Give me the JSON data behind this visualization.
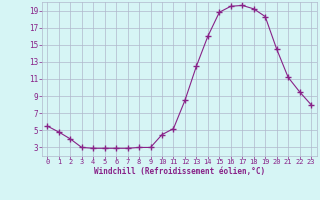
{
  "x": [
    0,
    1,
    2,
    3,
    4,
    5,
    6,
    7,
    8,
    9,
    10,
    11,
    12,
    13,
    14,
    15,
    16,
    17,
    18,
    19,
    20,
    21,
    22,
    23
  ],
  "y": [
    5.5,
    4.8,
    4.0,
    3.0,
    2.9,
    2.9,
    2.9,
    2.9,
    3.0,
    3.0,
    4.5,
    5.2,
    8.5,
    12.5,
    16.0,
    18.8,
    19.5,
    19.6,
    19.2,
    18.3,
    14.5,
    11.2,
    9.5,
    8.0
  ],
  "line_color": "#882288",
  "marker": "+",
  "marker_size": 4,
  "bg_color": "#d6f5f5",
  "grid_color": "#b0b8cc",
  "xlabel": "Windchill (Refroidissement éolien,°C)",
  "xlabel_color": "#882288",
  "tick_color": "#882288",
  "ylim": [
    2.0,
    20.0
  ],
  "yticks": [
    3,
    5,
    7,
    9,
    11,
    13,
    15,
    17,
    19
  ],
  "xticks": [
    0,
    1,
    2,
    3,
    4,
    5,
    6,
    7,
    8,
    9,
    10,
    11,
    12,
    13,
    14,
    15,
    16,
    17,
    18,
    19,
    20,
    21,
    22,
    23
  ]
}
